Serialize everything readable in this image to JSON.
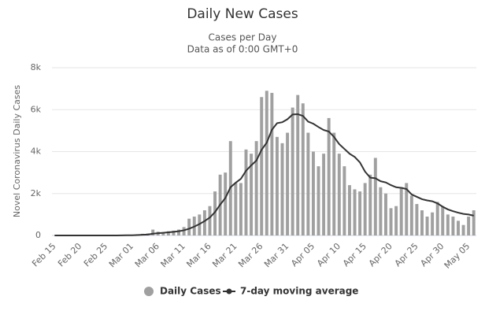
{
  "chart_data": {
    "type": "bar",
    "title": "Daily New Cases",
    "subtitle": [
      "Cases per Day",
      "Data as of 0:00 GMT+0"
    ],
    "y_label": "Novel Coronavirus Daily Cases",
    "categories": [
      "Feb 15",
      null,
      null,
      null,
      null,
      "Feb 20",
      null,
      null,
      null,
      null,
      "Feb 25",
      null,
      null,
      null,
      null,
      "Mar 01",
      null,
      null,
      null,
      null,
      "Mar 06",
      null,
      null,
      null,
      null,
      "Mar 11",
      null,
      null,
      null,
      null,
      "Mar 16",
      null,
      null,
      null,
      null,
      "Mar 21",
      null,
      null,
      null,
      null,
      "Mar 26",
      null,
      null,
      null,
      null,
      "Mar 31",
      null,
      null,
      null,
      null,
      "Apr 05",
      null,
      null,
      null,
      null,
      "Apr 10",
      null,
      null,
      null,
      null,
      "Apr 15",
      null,
      null,
      null,
      null,
      "Apr 20",
      null,
      null,
      null,
      null,
      "Apr 25",
      null,
      null,
      null,
      null,
      "Apr 30",
      null,
      null,
      null,
      null,
      "May 05",
      null
    ],
    "series": [
      {
        "name": "Daily Cases",
        "type": "bar",
        "color": "#a0a0a0",
        "values": [
          0,
          0,
          0,
          0,
          0,
          0,
          0,
          0,
          0,
          0,
          2,
          4,
          5,
          15,
          20,
          30,
          60,
          80,
          100,
          280,
          180,
          150,
          200,
          230,
          280,
          400,
          800,
          900,
          1000,
          1200,
          1400,
          2100,
          2900,
          3000,
          4500,
          2500,
          2500,
          4100,
          3900,
          4500,
          6600,
          6900,
          6800,
          4700,
          4400,
          4900,
          6100,
          6700,
          6300,
          4900,
          4000,
          3300,
          3900,
          5600,
          4900,
          3900,
          3300,
          2400,
          2200,
          2100,
          2500,
          2900,
          3700,
          2300,
          2000,
          1300,
          1400,
          2300,
          2500,
          1900,
          1500,
          1200,
          900,
          1100,
          1600,
          1400,
          1000,
          900,
          700,
          500,
          900,
          1200
        ]
      },
      {
        "name": "7-day moving average",
        "type": "line",
        "color": "#333333",
        "values": [
          0,
          0,
          0,
          0,
          0,
          0,
          0,
          0,
          0,
          0,
          0,
          1,
          2,
          4,
          7,
          11,
          19,
          31,
          44,
          84,
          107,
          126,
          150,
          174,
          203,
          246,
          320,
          423,
          544,
          687,
          854,
          1114,
          1471,
          1786,
          2300,
          2514,
          2700,
          3086,
          3343,
          3571,
          4086,
          4429,
          5043,
          5357,
          5400,
          5543,
          5771,
          5786,
          5700,
          5429,
          5329,
          5171,
          5029,
          4957,
          4700,
          4357,
          4129,
          3900,
          3743,
          3486,
          3043,
          2757,
          2729,
          2586,
          2529,
          2400,
          2300,
          2271,
          2214,
          1957,
          1843,
          1729,
          1671,
          1629,
          1529,
          1371,
          1243,
          1157,
          1086,
          1029,
          1000,
          943
        ]
      }
    ],
    "ylim": [
      0,
      8000
    ],
    "yticks": [
      0,
      {
        "value": 2000,
        "label": "2k"
      },
      {
        "value": 4000,
        "label": "4k"
      },
      {
        "value": 6000,
        "label": "6k"
      },
      {
        "value": 8000,
        "label": "8k"
      }
    ],
    "grid": true
  }
}
